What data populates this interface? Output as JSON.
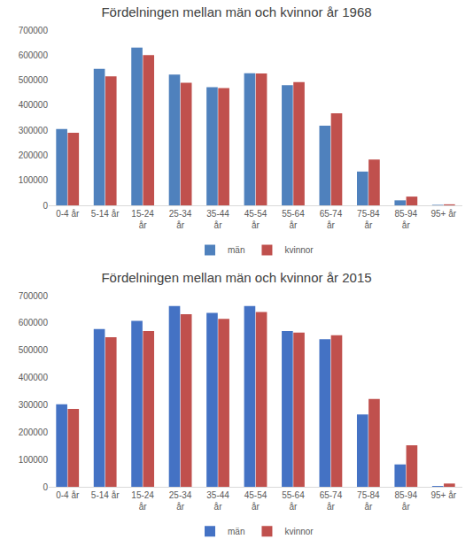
{
  "chart_data": [
    {
      "type": "bar",
      "title": "Fördelningen mellan män och kvinnor år 1968",
      "categories": [
        "0-4 år",
        "5-14 år",
        "15-24 år",
        "25-34 år",
        "35-44 år",
        "45-54 år",
        "55-64 år",
        "65-74 år",
        "75-84 år",
        "85-94 år",
        "95+ år"
      ],
      "series": [
        {
          "name": "män",
          "color": "#4f81bd",
          "values": [
            305000,
            545000,
            630000,
            522000,
            472000,
            528000,
            480000,
            318000,
            135000,
            20000,
            2000
          ]
        },
        {
          "name": "kvinnor",
          "color": "#c0504d",
          "values": [
            290000,
            515000,
            600000,
            490000,
            468000,
            527000,
            492000,
            368000,
            183000,
            35000,
            4000
          ]
        }
      ],
      "ylim": [
        0,
        700000
      ],
      "yticks": [
        0,
        100000,
        200000,
        300000,
        400000,
        500000,
        600000,
        700000
      ],
      "grid": false,
      "legend": "bottom"
    },
    {
      "type": "bar",
      "title": "Fördelningen mellan män och kvinnor år 2015",
      "categories": [
        "0-4 år",
        "5-14 år",
        "15-24 år",
        "25-34 år",
        "35-44 år",
        "45-54 år",
        "55-64 år",
        "65-74 år",
        "75-84 år",
        "85-94 år",
        "95+ år"
      ],
      "series": [
        {
          "name": "män",
          "color": "#4472c4",
          "values": [
            302000,
            578000,
            608000,
            662000,
            637000,
            662000,
            570000,
            540000,
            265000,
            82000,
            3000
          ]
        },
        {
          "name": "kvinnor",
          "color": "#c0504d",
          "values": [
            285000,
            548000,
            570000,
            632000,
            615000,
            640000,
            565000,
            555000,
            322000,
            152000,
            12000
          ]
        }
      ],
      "ylim": [
        0,
        700000
      ],
      "yticks": [
        0,
        100000,
        200000,
        300000,
        400000,
        500000,
        600000,
        700000
      ],
      "grid": false,
      "legend": "bottom"
    }
  ]
}
